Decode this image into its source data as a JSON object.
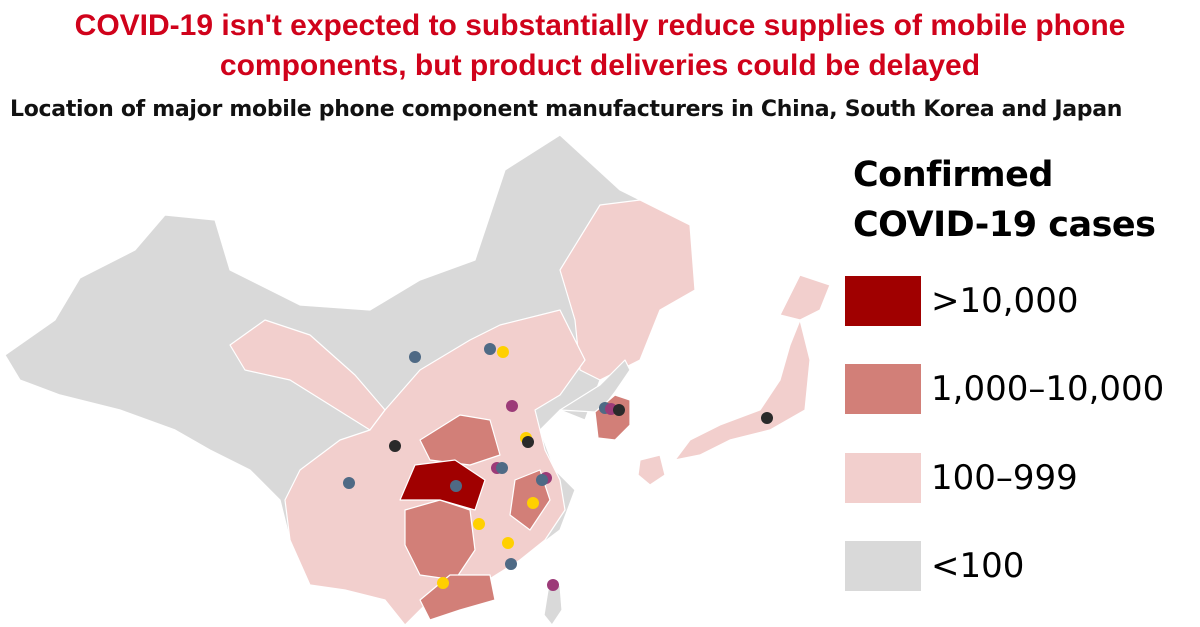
{
  "header": {
    "title_line1": "COVID-19 isn't expected to substantially reduce supplies of mobile phone",
    "title_line2": "components, but product deliveries could be delayed",
    "subtitle": "Location of major mobile phone component manufacturers in China, South Korea and Japan"
  },
  "legend": {
    "title_line1": "Confirmed",
    "title_line2": "COVID-19 cases",
    "items": [
      {
        "label": ">10,000",
        "color": "#a00000"
      },
      {
        "label": "1,000–10,000",
        "color": "#d27f78"
      },
      {
        "label": "100–999",
        "color": "#f2cfcd"
      },
      {
        "label": "<100",
        "color": "#d9d9d9"
      }
    ]
  },
  "colors": {
    "background": "#ffffff",
    "title": "#d0021b",
    "border": "#ffffff",
    "manufacturer_slate": "#4f6a85",
    "manufacturer_black": "#2a2a2a",
    "manufacturer_yellow": "#ffd000",
    "manufacturer_purple": "#9c3b78"
  }
}
